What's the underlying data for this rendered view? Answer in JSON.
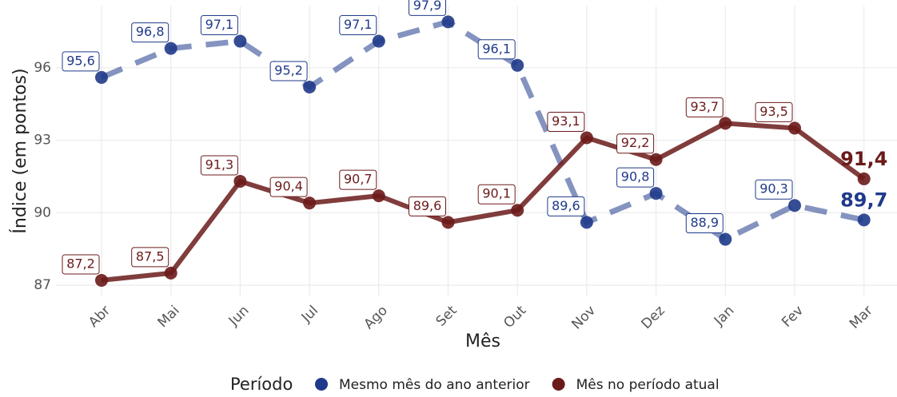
{
  "chart_data": {
    "type": "line",
    "x_label": "Mês",
    "y_label": "Índice (em pontos)",
    "categories": [
      "Abr",
      "Mai",
      "Jun",
      "Jul",
      "Ago",
      "Set",
      "Out",
      "Nov",
      "Dez",
      "Jan",
      "Fev",
      "Mar"
    ],
    "legend_title": "Período",
    "legend_position": "bottom",
    "grid": true,
    "ylim": [
      86.57,
      98.54
    ],
    "yticks": [
      87,
      90,
      93,
      96
    ],
    "series": [
      {
        "name": "Mesmo mês do ano anterior",
        "color": "#1f3a8a",
        "dashed": true,
        "values": [
          95.6,
          96.8,
          97.1,
          95.2,
          97.1,
          97.9,
          96.1,
          89.6,
          90.8,
          88.9,
          90.3,
          89.7
        ],
        "value_labels": [
          "95,6",
          "96,8",
          "97,1",
          "95,2",
          "97,1",
          "97,9",
          "96,1",
          "89,6",
          "90,8",
          "88,9",
          "90,3",
          "89,7"
        ]
      },
      {
        "name": "Mês no período atual",
        "color": "#6b1a1a",
        "dashed": false,
        "values": [
          87.2,
          87.5,
          91.3,
          90.4,
          90.7,
          89.6,
          90.1,
          93.1,
          92.2,
          93.7,
          93.5,
          91.4
        ],
        "value_labels": [
          "87,2",
          "87,5",
          "91,3",
          "90,4",
          "90,7",
          "89,6",
          "90,1",
          "93,1",
          "92,2",
          "93,7",
          "93,5",
          "91,4"
        ]
      }
    ]
  }
}
